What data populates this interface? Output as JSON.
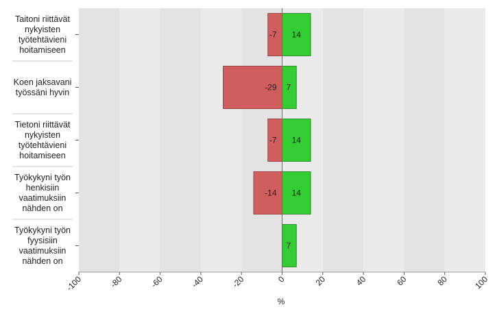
{
  "chart_data": {
    "type": "bar",
    "orientation": "horizontal",
    "stacked": "diverging",
    "categories": [
      [
        "Taitoni riittävät",
        "nykyisten",
        "työtehtävieni",
        "hoitamiseen"
      ],
      [
        "Koen jaksavani",
        "työssäni hyvin"
      ],
      [
        "Tietoni riittävät",
        "nykyisten",
        "työtehtävieni",
        "hoitamiseen"
      ],
      [
        "Työkykyni työn",
        "henkisiin",
        "vaatimuksiin",
        "nähden on"
      ],
      [
        "Työkykyni työn",
        "fyysisiin",
        "vaatimuksiin",
        "nähden on"
      ]
    ],
    "series": [
      {
        "values": [
          -7,
          -29,
          -7,
          -14,
          0
        ],
        "color": "#d05e5e"
      },
      {
        "values": [
          14,
          7,
          14,
          14,
          7
        ],
        "color": "#33cc33"
      }
    ],
    "data_labels": [
      [
        "-7",
        "14"
      ],
      [
        "-29",
        "7"
      ],
      [
        "-7",
        "14"
      ],
      [
        "-14",
        "14"
      ],
      [
        "",
        "7"
      ]
    ],
    "xlim": [
      -100,
      100
    ],
    "xticks": [
      -100,
      -80,
      -60,
      -40,
      -20,
      0,
      20,
      40,
      60,
      80,
      100
    ],
    "xlabel": "%",
    "grid": "alternating vertical bands",
    "legend": "none"
  }
}
